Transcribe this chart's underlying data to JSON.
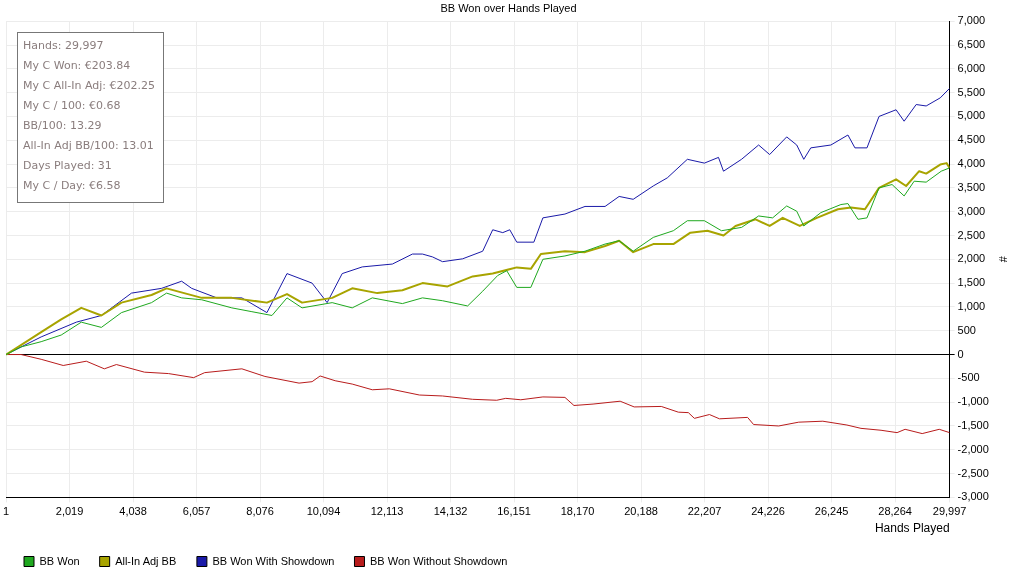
{
  "chart_data": {
    "type": "line",
    "title": "BB Won over Hands Played",
    "xlabel": "Hands Played",
    "ylabel": "#",
    "xlim": [
      1,
      29997
    ],
    "xticks": [
      1,
      {
        "value": 2019,
        "label": "2,019"
      },
      {
        "value": 4038,
        "label": "4,038"
      },
      {
        "value": 6057,
        "label": "6,057"
      },
      {
        "value": 8076,
        "label": "8,076"
      },
      {
        "value": 10094,
        "label": "10,094"
      },
      {
        "value": 12113,
        "label": "12,113"
      },
      {
        "value": 14132,
        "label": "14,132"
      },
      {
        "value": 16151,
        "label": "16,151"
      },
      {
        "value": 18170,
        "label": "18,170"
      },
      {
        "value": 20188,
        "label": "20,188"
      },
      {
        "value": 22207,
        "label": "22,207"
      },
      {
        "value": 24226,
        "label": "24,226"
      },
      {
        "value": 26245,
        "label": "26,245"
      },
      {
        "value": 28264,
        "label": "28,264"
      },
      {
        "value": 29997,
        "label": "29,997"
      }
    ],
    "ylim": [
      -3000,
      7000
    ],
    "yticks": [
      {
        "value": -3000,
        "label": "-3,000"
      },
      {
        "value": -2500,
        "label": "-2,500"
      },
      {
        "value": -2000,
        "label": "-2,000"
      },
      {
        "value": -1500,
        "label": "-1,500"
      },
      {
        "value": -1000,
        "label": "-1,000"
      },
      -500,
      0,
      500,
      {
        "value": 1000,
        "label": "1,000"
      },
      {
        "value": 1500,
        "label": "1,500"
      },
      {
        "value": 2000,
        "label": "2,000"
      },
      {
        "value": 2500,
        "label": "2,500"
      },
      {
        "value": 3000,
        "label": "3,000"
      },
      {
        "value": 3500,
        "label": "3,500"
      },
      {
        "value": 4000,
        "label": "4,000"
      },
      {
        "value": 4500,
        "label": "4,500"
      },
      {
        "value": 5000,
        "label": "5,000"
      },
      {
        "value": 5500,
        "label": "5,500"
      },
      {
        "value": 6000,
        "label": "6,000"
      },
      {
        "value": 6500,
        "label": "6,500"
      },
      {
        "value": 7000,
        "label": "7,000"
      }
    ],
    "grid": true,
    "legend": "bottom",
    "marker": "none",
    "line_style": "solid",
    "annotations": [
      "Hands: 29,997",
      "My C Won: €203.84",
      "My C All-In Adj: €202.25",
      "My C / 100: €0.68",
      "BB/100: 13.29",
      "All-In Adj BB/100: 13.01",
      "Days Played: 31",
      "My C / Day: €6.58"
    ],
    "series": [
      {
        "name": "BB Won",
        "color": "#1fa81f",
        "x": [
          1,
          479,
          1117,
          1755,
          2393,
          3031,
          3669,
          4626,
          5104,
          5583,
          6221,
          7178,
          7816,
          8454,
          8932,
          9411,
          10368,
          11006,
          11644,
          12601,
          13239,
          13877,
          14674,
          15153,
          15631,
          15918,
          16237,
          16684,
          17067,
          17768,
          18406,
          19044,
          19491,
          19938,
          20576,
          21214,
          21660,
          22202,
          22745,
          23383,
          23925,
          24372,
          24818,
          25137,
          25361,
          25903,
          26541,
          26764,
          27083,
          27370,
          27753,
          28168,
          28551,
          28870,
          29252,
          29731,
          29997
        ],
        "values": [
          0,
          160,
          270,
          410,
          680,
          570,
          880,
          1090,
          1290,
          1190,
          1150,
          980,
          900,
          820,
          1190,
          980,
          1090,
          980,
          1190,
          1070,
          1190,
          1130,
          1020,
          1330,
          1660,
          1760,
          1410,
          1410,
          2000,
          2070,
          2170,
          2320,
          2390,
          2170,
          2460,
          2600,
          2810,
          2810,
          2600,
          2670,
          2910,
          2870,
          3120,
          3010,
          2700,
          2980,
          3150,
          3170,
          2840,
          2870,
          3500,
          3570,
          3330,
          3640,
          3620,
          3850,
          3920
        ]
      },
      {
        "name": "All-In Adj BB",
        "color": "#a8a400",
        "x": [
          1,
          1117,
          1755,
          2393,
          3031,
          3669,
          4626,
          5104,
          6221,
          7178,
          8294,
          8932,
          9411,
          10368,
          11006,
          11803,
          12601,
          13239,
          14036,
          14834,
          15472,
          16237,
          16684,
          17003,
          17768,
          18406,
          19044,
          19491,
          19938,
          20576,
          21214,
          21756,
          22298,
          22809,
          23191,
          23829,
          24276,
          24691,
          25233,
          25775,
          26445,
          26860,
          27306,
          27753,
          28295,
          28614,
          29029,
          29252,
          29699,
          29900,
          29997
        ],
        "values": [
          0,
          470,
          740,
          980,
          820,
          1090,
          1250,
          1390,
          1190,
          1190,
          1090,
          1270,
          1090,
          1190,
          1390,
          1290,
          1350,
          1500,
          1430,
          1640,
          1700,
          1830,
          1800,
          2110,
          2170,
          2150,
          2280,
          2390,
          2150,
          2320,
          2320,
          2560,
          2600,
          2500,
          2700,
          2840,
          2700,
          2870,
          2700,
          2870,
          3050,
          3090,
          3050,
          3500,
          3680,
          3540,
          3850,
          3800,
          3990,
          4020,
          3920
        ]
      },
      {
        "name": "BB Won With Showdown",
        "color": "#1a1aa8",
        "x": [
          1,
          1117,
          2233,
          3031,
          3988,
          4945,
          5583,
          5902,
          6699,
          7497,
          8294,
          8932,
          9730,
          10208,
          10687,
          11325,
          12282,
          12920,
          13239,
          13558,
          13877,
          14515,
          15153,
          15472,
          15791,
          16014,
          16237,
          16780,
          17067,
          17768,
          18406,
          19044,
          19491,
          19938,
          20576,
          21022,
          21660,
          22202,
          22649,
          22809,
          23383,
          23925,
          24276,
          24818,
          25137,
          25361,
          25584,
          26222,
          26764,
          26987,
          27370,
          27753,
          28295,
          28551,
          28934,
          29252,
          29699,
          29997
        ],
        "values": [
          0,
          370,
          680,
          820,
          1290,
          1390,
          1540,
          1390,
          1190,
          1190,
          880,
          1700,
          1500,
          1090,
          1700,
          1840,
          1900,
          2110,
          2110,
          2050,
          1950,
          2010,
          2170,
          2620,
          2560,
          2620,
          2360,
          2360,
          2870,
          2950,
          3110,
          3110,
          3320,
          3260,
          3540,
          3710,
          4100,
          4020,
          4140,
          3850,
          4100,
          4400,
          4200,
          4570,
          4400,
          4100,
          4340,
          4400,
          4610,
          4340,
          4340,
          5000,
          5140,
          4900,
          5250,
          5220,
          5390,
          5590
        ]
      },
      {
        "name": "BB Won Without Showdown",
        "color": "#b81c1c",
        "x": [
          1,
          479,
          1117,
          1818,
          2552,
          3126,
          3509,
          4402,
          5168,
          5965,
          6316,
          7497,
          8230,
          9315,
          9730,
          9985,
          10463,
          11006,
          11644,
          12186,
          13143,
          13877,
          14834,
          15599,
          15886,
          16365,
          17067,
          17768,
          18055,
          18662,
          19523,
          19970,
          20831,
          21373,
          21692,
          21883,
          22362,
          22681,
          23574,
          23766,
          24563,
          25201,
          25967,
          26732,
          27179,
          27817,
          28327,
          28582,
          29125,
          29667,
          29997
        ],
        "values": [
          0,
          0,
          -100,
          -230,
          -140,
          -300,
          -210,
          -370,
          -400,
          -485,
          -380,
          -300,
          -460,
          -600,
          -570,
          -450,
          -550,
          -620,
          -740,
          -720,
          -850,
          -870,
          -940,
          -960,
          -920,
          -950,
          -890,
          -900,
          -1070,
          -1040,
          -980,
          -1100,
          -1090,
          -1210,
          -1220,
          -1340,
          -1260,
          -1350,
          -1320,
          -1470,
          -1500,
          -1420,
          -1400,
          -1480,
          -1550,
          -1590,
          -1640,
          -1570,
          -1660,
          -1570,
          -1640
        ]
      }
    ]
  }
}
